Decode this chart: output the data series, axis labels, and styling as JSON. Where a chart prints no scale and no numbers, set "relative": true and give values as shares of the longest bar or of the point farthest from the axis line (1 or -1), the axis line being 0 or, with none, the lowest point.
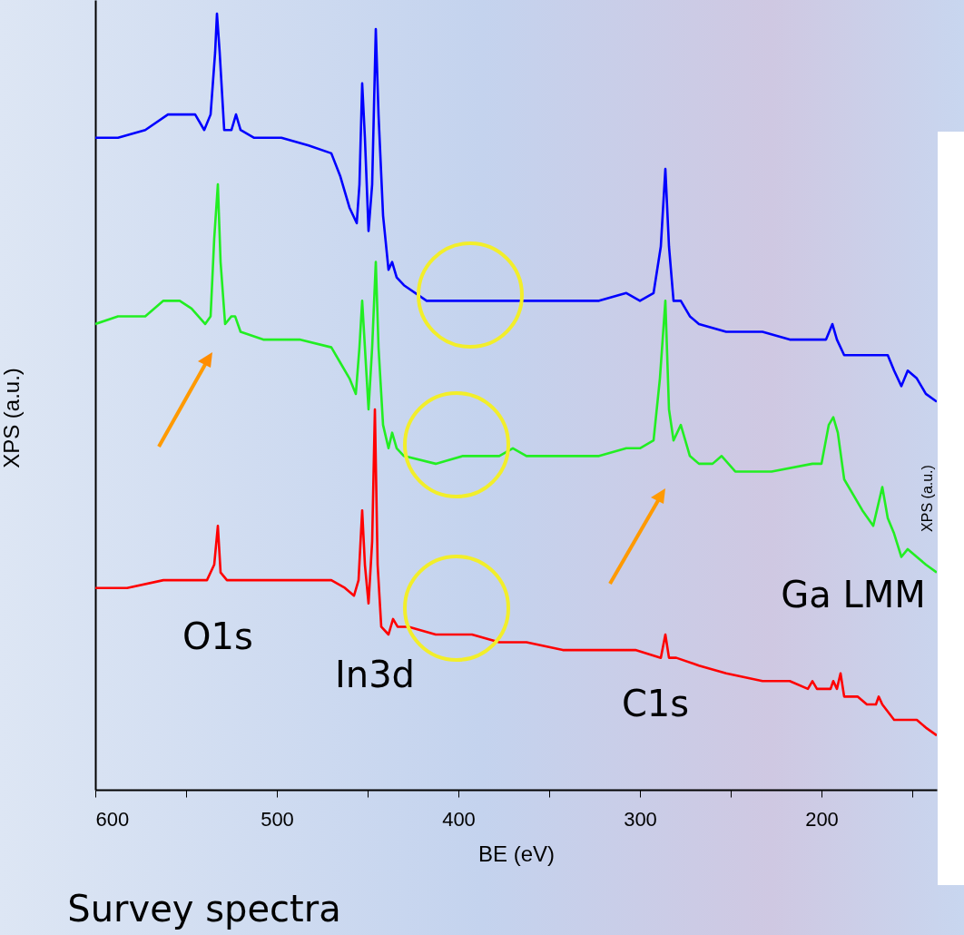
{
  "chart_data": {
    "type": "line",
    "relative": true,
    "xlabel": "BE (eV)",
    "ylabel": "XPS (a.u.)",
    "xlim": [
      600,
      136.5
    ],
    "xticks": [
      600,
      {
        "value": 550,
        "label": null
      },
      500,
      {
        "value": 450,
        "label": null
      },
      400,
      {
        "value": 350,
        "label": null
      },
      300,
      {
        "value": 250,
        "label": null
      },
      200,
      {
        "value": 150,
        "label": null
      }
    ],
    "grid": false,
    "marker": "none",
    "line_style": "solid",
    "annotations": [
      "O1s",
      "In3d",
      "C1s",
      "Ga LMM",
      "Survey spectra",
      "XPS (a.u.)"
    ],
    "series": [
      {
        "color": "#0000ff",
        "x": [
          600,
          587.5,
          572.5,
          560,
          552.5,
          545,
          540,
          536.5,
          534,
          533,
          531.5,
          529,
          525,
          522.5,
          520,
          512.5,
          497.5,
          482.5,
          470,
          465,
          460,
          456,
          454.5,
          453,
          451.5,
          449.5,
          447.5,
          445.5,
          444,
          441.5,
          438.5,
          436.5,
          434,
          430,
          417.5,
          402.5,
          387.5,
          372.5,
          362.5,
          342.5,
          322.5,
          307.5,
          300,
          292.5,
          288.5,
          286,
          284,
          281.5,
          277.5,
          272.5,
          267.5,
          252.5,
          232.5,
          217.5,
          205,
          197.5,
          194,
          191.5,
          187.5,
          172.5,
          166.5,
          163.5,
          160,
          156,
          152.5,
          147.5,
          142.5,
          136.5
        ],
        "values": [
          0.84,
          0.84,
          0.85,
          0.87,
          0.87,
          0.87,
          0.85,
          0.87,
          0.95,
          1,
          0.95,
          0.85,
          0.85,
          0.87,
          0.85,
          0.84,
          0.84,
          0.83,
          0.82,
          0.79,
          0.75,
          0.73,
          0.78,
          0.91,
          0.84,
          0.72,
          0.78,
          0.98,
          0.87,
          0.74,
          0.67,
          0.68,
          0.66,
          0.65,
          0.63,
          0.63,
          0.63,
          0.63,
          0.63,
          0.63,
          0.63,
          0.64,
          0.63,
          0.64,
          0.7,
          0.8,
          0.7,
          0.63,
          0.63,
          0.61,
          0.6,
          0.59,
          0.59,
          0.58,
          0.58,
          0.58,
          0.6,
          0.58,
          0.56,
          0.56,
          0.56,
          0.56,
          0.54,
          0.52,
          0.54,
          0.53,
          0.51,
          0.5
        ]
      },
      {
        "color": "#22ee22",
        "x": [
          600,
          587.5,
          572.5,
          562.5,
          553.5,
          547,
          539.5,
          536.5,
          534.5,
          532.5,
          531,
          528.5,
          525,
          523,
          520,
          507.5,
          487.5,
          470,
          465,
          460,
          456.5,
          454.5,
          453,
          451.5,
          449.5,
          447.5,
          445.5,
          444,
          441.5,
          438.5,
          436.5,
          434,
          430,
          412.5,
          397.5,
          377.5,
          370,
          362.5,
          342.5,
          322.5,
          307.5,
          300,
          292.5,
          289,
          286,
          284,
          281.5,
          277.5,
          272.5,
          267.5,
          260,
          255,
          247.5,
          227.5,
          205,
          200,
          196,
          193.5,
          191,
          187.5,
          177.5,
          171.5,
          168.5,
          166.5,
          163.5,
          160,
          156,
          152.5,
          147.5,
          142.5,
          136.5
        ],
        "values": [
          0.6,
          0.61,
          0.61,
          0.63,
          0.63,
          0.62,
          0.6,
          0.61,
          0.71,
          0.78,
          0.68,
          0.6,
          0.61,
          0.61,
          0.59,
          0.58,
          0.58,
          0.57,
          0.55,
          0.53,
          0.51,
          0.57,
          0.63,
          0.57,
          0.49,
          0.57,
          0.68,
          0.57,
          0.47,
          0.44,
          0.46,
          0.44,
          0.43,
          0.42,
          0.43,
          0.43,
          0.44,
          0.43,
          0.43,
          0.43,
          0.44,
          0.44,
          0.45,
          0.53,
          0.63,
          0.49,
          0.45,
          0.47,
          0.43,
          0.42,
          0.42,
          0.43,
          0.41,
          0.41,
          0.42,
          0.42,
          0.47,
          0.48,
          0.46,
          0.4,
          0.36,
          0.34,
          0.37,
          0.39,
          0.35,
          0.33,
          0.3,
          0.31,
          0.3,
          0.29,
          0.28
        ]
      },
      {
        "color": "#ff0000",
        "x": [
          600,
          582.5,
          562.5,
          547,
          538.5,
          534.5,
          532.5,
          531,
          527.5,
          523.5,
          520,
          502.5,
          482.5,
          470,
          462.5,
          457.5,
          455,
          453,
          451.5,
          449.5,
          447.5,
          446,
          444.5,
          442.5,
          438.5,
          436,
          433.5,
          427.5,
          412.5,
          392.5,
          377.5,
          362.5,
          342.5,
          322.5,
          302.5,
          288.5,
          286,
          284,
          280,
          267.5,
          252.5,
          232.5,
          217.5,
          207.5,
          205,
          202.5,
          195,
          193.5,
          191.5,
          189.5,
          187.5,
          180,
          175,
          170,
          168.5,
          166.5,
          160,
          155,
          150,
          147.5,
          142.5,
          136.5
        ],
        "values": [
          0.26,
          0.26,
          0.27,
          0.27,
          0.27,
          0.29,
          0.34,
          0.28,
          0.27,
          0.27,
          0.27,
          0.27,
          0.27,
          0.27,
          0.26,
          0.25,
          0.27,
          0.36,
          0.29,
          0.24,
          0.32,
          0.49,
          0.29,
          0.21,
          0.2,
          0.22,
          0.21,
          0.21,
          0.2,
          0.2,
          0.19,
          0.19,
          0.18,
          0.18,
          0.18,
          0.17,
          0.2,
          0.17,
          0.17,
          0.16,
          0.15,
          0.14,
          0.14,
          0.13,
          0.14,
          0.13,
          0.13,
          0.14,
          0.13,
          0.15,
          0.12,
          0.12,
          0.11,
          0.11,
          0.12,
          0.11,
          0.09,
          0.09,
          0.09,
          0.09,
          0.08,
          0.07
        ]
      }
    ]
  }
}
